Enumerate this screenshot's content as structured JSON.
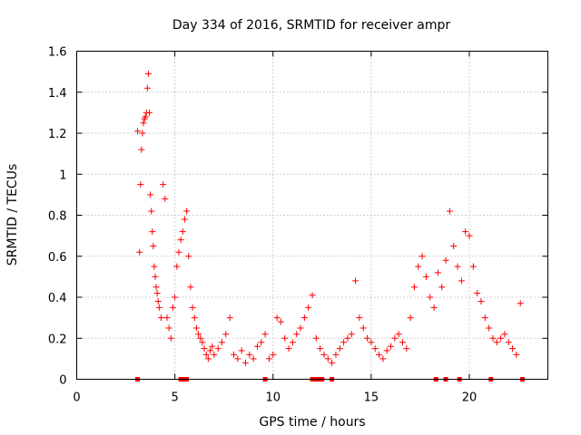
{
  "chart_data": {
    "type": "scatter",
    "title": "Day 334 of 2016, SRMTID for receiver ampr",
    "xlabel": "GPS time / hours",
    "ylabel": "SRMTID / TECUs",
    "xlim": [
      0,
      24
    ],
    "ylim": [
      0,
      1.6
    ],
    "xticks": [
      0,
      5,
      10,
      15,
      20
    ],
    "xtick_labels": [
      "0",
      "5",
      "10",
      "15",
      "20"
    ],
    "yticks": [
      0,
      0.2,
      0.4,
      0.6,
      0.8,
      1.0,
      1.2,
      1.4,
      1.6
    ],
    "ytick_labels": [
      "0",
      "0.2",
      "0.4",
      "0.6",
      "0.8",
      "1",
      "1.2",
      "1.4",
      "1.6"
    ],
    "grid": true,
    "marker_color": "#ff0000",
    "series": [
      {
        "name": "SRMTID",
        "marker": "plus",
        "x": [
          3.1,
          3.2,
          3.25,
          3.3,
          3.35,
          3.4,
          3.45,
          3.5,
          3.55,
          3.6,
          3.65,
          3.7,
          3.75,
          3.8,
          3.85,
          3.9,
          3.95,
          4.0,
          4.05,
          4.1,
          4.15,
          4.2,
          4.3,
          4.4,
          4.5,
          4.6,
          4.7,
          4.8,
          4.9,
          5.0,
          5.1,
          5.2,
          5.3,
          5.4,
          5.5,
          5.6,
          5.7,
          5.8,
          5.9,
          6.0,
          6.1,
          6.2,
          6.3,
          6.4,
          6.5,
          6.6,
          6.7,
          6.8,
          6.9,
          7.0,
          7.2,
          7.4,
          7.6,
          7.8,
          8.0,
          8.2,
          8.4,
          8.6,
          8.8,
          9.0,
          9.2,
          9.4,
          9.6,
          9.8,
          10.0,
          10.2,
          10.4,
          10.6,
          10.8,
          11.0,
          11.2,
          11.4,
          11.6,
          11.8,
          12.0,
          12.2,
          12.4,
          12.6,
          12.8,
          13.0,
          13.2,
          13.4,
          13.6,
          13.8,
          14.0,
          14.2,
          14.4,
          14.6,
          14.8,
          15.0,
          15.2,
          15.4,
          15.6,
          15.8,
          16.0,
          16.2,
          16.4,
          16.6,
          16.8,
          17.0,
          17.2,
          17.4,
          17.6,
          17.8,
          18.0,
          18.2,
          18.4,
          18.6,
          18.8,
          19.0,
          19.2,
          19.4,
          19.6,
          19.8,
          20.0,
          20.2,
          20.4,
          20.6,
          20.8,
          21.0,
          21.2,
          21.4,
          21.6,
          21.8,
          22.0,
          22.2,
          22.4,
          22.6
        ],
        "y": [
          1.21,
          0.62,
          0.95,
          1.12,
          1.2,
          1.25,
          1.27,
          1.28,
          1.3,
          1.42,
          1.49,
          1.3,
          0.9,
          0.82,
          0.72,
          0.65,
          0.55,
          0.5,
          0.45,
          0.42,
          0.38,
          0.35,
          0.3,
          0.95,
          0.88,
          0.3,
          0.25,
          0.2,
          0.35,
          0.4,
          0.55,
          0.62,
          0.68,
          0.72,
          0.78,
          0.82,
          0.6,
          0.45,
          0.35,
          0.3,
          0.25,
          0.22,
          0.2,
          0.18,
          0.15,
          0.12,
          0.1,
          0.14,
          0.16,
          0.12,
          0.15,
          0.18,
          0.22,
          0.3,
          0.12,
          0.1,
          0.14,
          0.08,
          0.12,
          0.1,
          0.16,
          0.18,
          0.22,
          0.1,
          0.12,
          0.3,
          0.28,
          0.2,
          0.15,
          0.18,
          0.22,
          0.25,
          0.3,
          0.35,
          0.41,
          0.2,
          0.15,
          0.12,
          0.1,
          0.08,
          0.12,
          0.15,
          0.18,
          0.2,
          0.22,
          0.48,
          0.3,
          0.25,
          0.2,
          0.18,
          0.15,
          0.12,
          0.1,
          0.14,
          0.16,
          0.2,
          0.22,
          0.18,
          0.15,
          0.3,
          0.45,
          0.55,
          0.6,
          0.5,
          0.4,
          0.35,
          0.52,
          0.45,
          0.58,
          0.82,
          0.65,
          0.55,
          0.48,
          0.72,
          0.7,
          0.55,
          0.42,
          0.38,
          0.3,
          0.25,
          0.2,
          0.18,
          0.2,
          0.22,
          0.18,
          0.15,
          0.12,
          0.37
        ]
      },
      {
        "name": "zero markers",
        "marker": "square",
        "x": [
          3.1,
          5.3,
          5.5,
          5.6,
          9.6,
          12.0,
          12.1,
          12.2,
          12.4,
          12.5,
          13.0,
          18.3,
          18.8,
          19.5,
          21.1,
          22.7
        ],
        "y": [
          0,
          0,
          0,
          0,
          0,
          0,
          0,
          0,
          0,
          0,
          0,
          0,
          0,
          0,
          0,
          0
        ]
      }
    ]
  }
}
